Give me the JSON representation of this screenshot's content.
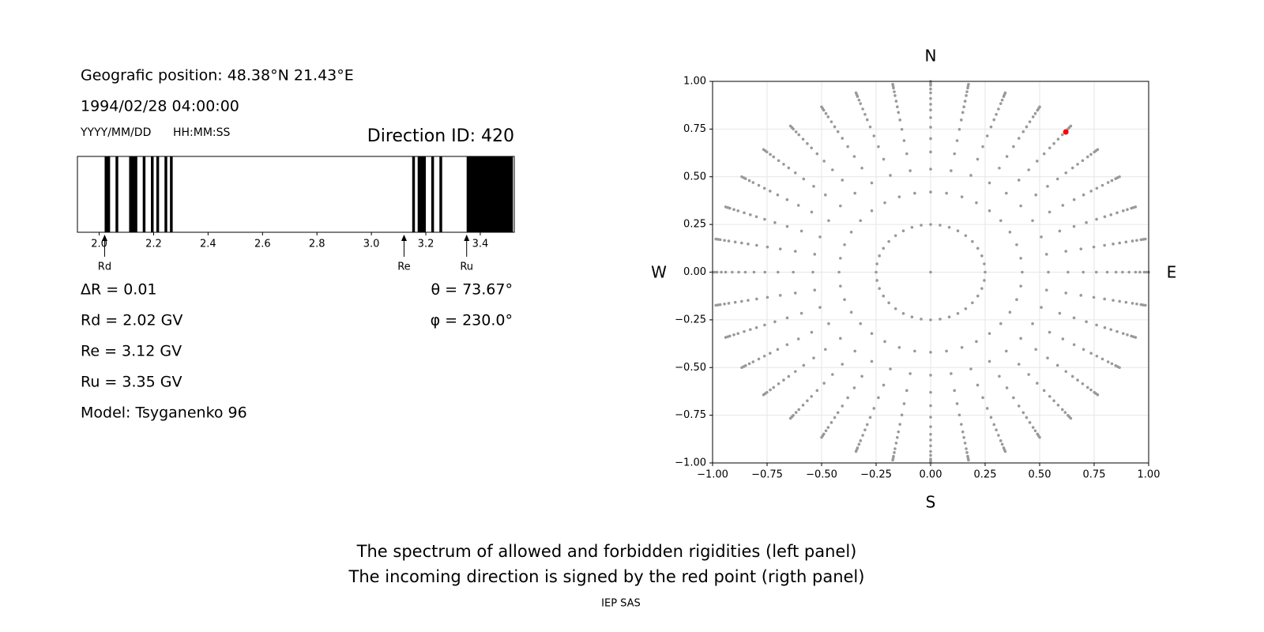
{
  "info": {
    "position": "Geografic position: 48.38°N 21.43°E",
    "datetime": "1994/02/28 04:00:00",
    "date_format": "YYYY/MM/DD",
    "time_format": "HH:MM:SS",
    "direction": "Direction ID: 420",
    "delta_r": "ΔR = 0.01",
    "theta": "θ = 73.67°",
    "phi": "φ = 230.0°",
    "rd": "Rd = 2.02 GV",
    "re": "Re = 3.12 GV",
    "ru": "Ru = 3.35 GV",
    "model": "Model: Tsyganenko 96"
  },
  "footer": {
    "lines": [
      "The spectrum of allowed and forbidden rigidities (left panel)",
      "The incoming direction is signed by the red point (rigth panel)"
    ],
    "credit": "IEP SAS"
  },
  "chart_data": [
    {
      "type": "spectrum",
      "xlim": [
        1.92,
        3.525
      ],
      "xticks": [
        {
          "value": 2,
          "label": "2.0"
        },
        2.2,
        2.4,
        2.6,
        2.8,
        {
          "value": 3,
          "label": "3.0"
        },
        3.2,
        3.4
      ],
      "color": "#000000",
      "bands": [
        [
          2.02,
          2.04
        ],
        [
          2.06,
          2.07
        ],
        [
          2.11,
          2.14
        ],
        [
          2.16,
          2.17
        ],
        [
          2.19,
          2.2
        ],
        [
          2.21,
          2.22
        ],
        [
          2.24,
          2.25
        ],
        [
          2.26,
          2.27
        ],
        [
          3.15,
          3.16
        ],
        [
          3.17,
          3.2
        ],
        [
          3.22,
          3.23
        ],
        [
          3.25,
          3.26
        ],
        [
          3.35,
          3.52
        ]
      ],
      "markers": [
        {
          "label": "Rd",
          "x": 2.02
        },
        {
          "label": "Re",
          "x": 3.12
        },
        {
          "label": "Ru",
          "x": 3.35
        }
      ]
    },
    {
      "type": "polar-scatter",
      "compass": {
        "top": "N",
        "bottom": "S",
        "left": "W",
        "right": "E"
      },
      "xlim": [
        -1,
        1
      ],
      "ylim": [
        -1,
        1
      ],
      "xticks": [
        {
          "value": -1,
          "label": "−1.00"
        },
        {
          "value": -0.75,
          "label": "−0.75"
        },
        {
          "value": -0.5,
          "label": "−0.50"
        },
        {
          "value": -0.25,
          "label": "−0.25"
        },
        {
          "value": 0,
          "label": "0.00"
        },
        {
          "value": 0.25,
          "label": "0.25"
        },
        {
          "value": 0.5,
          "label": "0.50"
        },
        {
          "value": 0.75,
          "label": "0.75"
        },
        {
          "value": 1,
          "label": "1.00"
        }
      ],
      "yticks": [
        {
          "value": -1,
          "label": "−1.00"
        },
        {
          "value": -0.75,
          "label": "−0.75"
        },
        {
          "value": -0.5,
          "label": "−0.50"
        },
        {
          "value": -0.25,
          "label": "−0.25"
        },
        {
          "value": 0,
          "label": "0.00"
        },
        {
          "value": 0.25,
          "label": "0.25"
        },
        {
          "value": 0.5,
          "label": "0.50"
        },
        {
          "value": 0.75,
          "label": "0.75"
        },
        {
          "value": 1,
          "label": "1.00"
        }
      ],
      "grid": true,
      "color": "#999999",
      "angles": [
        0,
        10,
        20,
        30,
        40,
        50,
        60,
        70,
        80,
        90,
        100,
        110,
        120,
        130,
        140,
        150,
        160,
        170,
        180,
        190,
        200,
        210,
        220,
        230,
        240,
        250,
        260,
        270,
        280,
        290,
        300,
        310,
        320,
        330,
        340,
        350
      ],
      "radii": [
        0.25,
        0.42,
        0.54,
        0.63,
        0.7,
        0.76,
        0.81,
        0.85,
        0.88,
        0.91,
        0.94,
        0.96,
        0.98,
        0.99,
        1.0
      ],
      "center": {
        "x": 0,
        "y": 0
      },
      "highlight": {
        "x": 0.62,
        "y": 0.735,
        "color": "#ff0000"
      }
    }
  ]
}
